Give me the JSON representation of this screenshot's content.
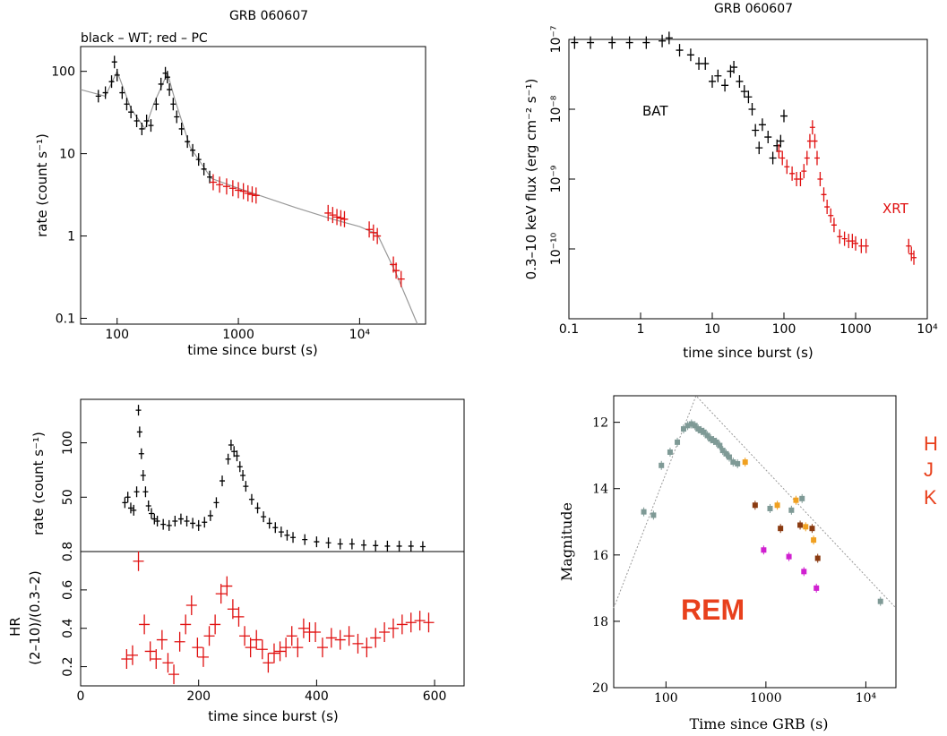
{
  "colors": {
    "axis": "#000000",
    "red": "#e01010",
    "model": "#999999",
    "grey": "#7f9a96",
    "orange": "#f0a020",
    "brown": "#8a3a10",
    "magenta": "#d020d0",
    "label_red": "#e8401c"
  },
  "chart_data": [
    {
      "id": "xrt_lightcurve",
      "type": "scatter",
      "title": "GRB 060607",
      "subtitle": "black – WT; red – PC",
      "xlabel": "time since burst (s)",
      "ylabel": "rate (count s⁻¹)",
      "xscale": "log",
      "yscale": "log",
      "xlim": [
        50,
        35000
      ],
      "ylim": [
        0.085,
        200
      ],
      "xticks": [
        100,
        1000,
        10000
      ],
      "xtick_labels": [
        "100",
        "1000",
        "10⁴"
      ],
      "yticks": [
        0.1,
        1,
        10,
        100
      ],
      "ytick_labels": [
        "0.1",
        "1",
        "10",
        "100"
      ],
      "grid": false,
      "series": [
        {
          "name": "WT",
          "color": "#000000",
          "x": [
            70,
            80,
            90,
            95,
            100,
            110,
            120,
            130,
            145,
            160,
            175,
            190,
            210,
            230,
            250,
            260,
            270,
            290,
            310,
            340,
            380,
            420,
            470,
            520,
            580
          ],
          "y": [
            50,
            55,
            75,
            130,
            90,
            55,
            40,
            32,
            25,
            20,
            25,
            22,
            40,
            70,
            95,
            85,
            60,
            40,
            28,
            20,
            14,
            11,
            8.5,
            6.5,
            5.2
          ]
        },
        {
          "name": "PC",
          "color": "#e01010",
          "x": [
            620,
            700,
            800,
            900,
            1000,
            1100,
            1200,
            1300,
            1400,
            5500,
            6000,
            6500,
            7000,
            7500,
            12000,
            13000,
            14000,
            19000,
            20000,
            22000
          ],
          "y": [
            4.5,
            4.2,
            4.0,
            3.8,
            3.6,
            3.5,
            3.3,
            3.2,
            3.1,
            1.9,
            1.8,
            1.7,
            1.65,
            1.6,
            1.2,
            1.1,
            1.0,
            0.45,
            0.38,
            0.3
          ]
        },
        {
          "name": "model",
          "color": "#999999",
          "x": [
            50,
            80,
            100,
            130,
            170,
            200,
            260,
            300,
            400,
            600,
            1000,
            3000,
            6000,
            10000,
            14000,
            20000,
            30000
          ],
          "y": [
            60,
            50,
            100,
            35,
            20,
            40,
            95,
            45,
            12,
            5,
            3.8,
            2.2,
            1.6,
            1.3,
            1.05,
            0.35,
            0.085
          ]
        }
      ]
    },
    {
      "id": "bat_xrt_flux",
      "type": "scatter",
      "title": "GRB 060607",
      "xlabel": "time since burst (s)",
      "ylabel": "0.3–10 keV flux (erg cm⁻² s⁻¹)",
      "xscale": "log",
      "yscale": "log",
      "xlim": [
        0.1,
        10000
      ],
      "ylim": [
        1e-11,
        1e-07
      ],
      "xticks": [
        0.1,
        1,
        10,
        100,
        1000,
        10000
      ],
      "xtick_labels": [
        "0.1",
        "1",
        "10",
        "100",
        "1000",
        "10⁴"
      ],
      "yticks": [
        1e-07,
        1e-08,
        1e-09,
        1e-10
      ],
      "ytick_labels": [
        "10⁻⁷",
        "10⁻⁸",
        "10⁻⁹",
        "10⁻¹⁰"
      ],
      "grid": false,
      "annotations": [
        {
          "text": "BAT",
          "color": "#000000"
        },
        {
          "text": "XRT",
          "color": "#e01010"
        }
      ],
      "series": [
        {
          "name": "BAT",
          "color": "#000000",
          "x": [
            0.12,
            0.2,
            0.4,
            0.7,
            1.2,
            2.0,
            2.5,
            3.5,
            5,
            6.5,
            8,
            10,
            12,
            15,
            18,
            20,
            24,
            28,
            32,
            36,
            40,
            45,
            50,
            60,
            70,
            80,
            90,
            100
          ],
          "y": [
            9e-08,
            9e-08,
            9e-08,
            9e-08,
            9e-08,
            9.5e-08,
            1.05e-07,
            7e-08,
            6e-08,
            4.5e-08,
            4.5e-08,
            2.5e-08,
            3e-08,
            2.2e-08,
            3.5e-08,
            4e-08,
            2.5e-08,
            1.8e-08,
            1.5e-08,
            1e-08,
            5e-09,
            2.8e-09,
            6e-09,
            4e-09,
            2e-09,
            3e-09,
            3.5e-09,
            8e-09
          ]
        },
        {
          "name": "XRT",
          "color": "#e01010",
          "x": [
            85,
            95,
            110,
            130,
            150,
            170,
            190,
            210,
            230,
            250,
            270,
            290,
            320,
            360,
            400,
            450,
            500,
            600,
            700,
            800,
            900,
            1000,
            1200,
            1400,
            5500,
            6000,
            6500
          ],
          "y": [
            2.5e-09,
            2e-09,
            1.5e-09,
            1.2e-09,
            1e-09,
            1e-09,
            1.3e-09,
            2e-09,
            3.5e-09,
            5.5e-09,
            3.5e-09,
            2e-09,
            1e-09,
            6e-10,
            4e-10,
            3e-10,
            2.2e-10,
            1.5e-10,
            1.4e-10,
            1.3e-10,
            1.3e-10,
            1.2e-10,
            1.1e-10,
            1.1e-10,
            1.1e-10,
            8.5e-11,
            7.5e-11
          ]
        }
      ]
    },
    {
      "id": "early_rate_hr",
      "type": "scatter",
      "xlabel": "time since burst (s)",
      "xlim": [
        0,
        650
      ],
      "xticks": [
        0,
        200,
        400,
        600
      ],
      "xtick_labels": [
        "0",
        "200",
        "400",
        "600"
      ],
      "grid": false,
      "panels": [
        {
          "name": "rate",
          "ylabel": "rate (count s⁻¹)",
          "ylim": [
            0,
            140
          ],
          "yticks": [
            50,
            100
          ],
          "ytick_labels": [
            "50",
            "100"
          ],
          "color": "#000000",
          "x": [
            75,
            80,
            85,
            90,
            95,
            98,
            100,
            103,
            106,
            110,
            115,
            120,
            125,
            130,
            140,
            150,
            160,
            170,
            180,
            190,
            200,
            210,
            220,
            230,
            240,
            250,
            255,
            260,
            265,
            270,
            275,
            280,
            290,
            300,
            310,
            320,
            330,
            340,
            350,
            360,
            380,
            400,
            420,
            440,
            460,
            480,
            500,
            520,
            540,
            560,
            580
          ],
          "y": [
            45,
            50,
            40,
            38,
            55,
            130,
            110,
            90,
            70,
            55,
            42,
            35,
            30,
            28,
            25,
            24,
            28,
            30,
            28,
            26,
            24,
            27,
            33,
            45,
            65,
            85,
            98,
            92,
            88,
            78,
            70,
            60,
            48,
            40,
            32,
            26,
            22,
            18,
            15,
            13,
            11,
            9,
            8,
            7,
            7,
            6,
            5.5,
            5,
            5,
            5,
            4.5
          ]
        },
        {
          "name": "HR",
          "ylabel": "HR\n(2–10)/(0.3–2)",
          "ylim": [
            0.1,
            0.8
          ],
          "yticks": [
            0.2,
            0.4,
            0.6,
            0.8
          ],
          "ytick_labels": [
            "0.2",
            "0.4",
            "0.6",
            "0.8"
          ],
          "color": "#e01010",
          "x": [
            78,
            88,
            98,
            108,
            118,
            128,
            138,
            148,
            158,
            168,
            178,
            188,
            198,
            208,
            218,
            228,
            238,
            248,
            258,
            268,
            278,
            288,
            298,
            308,
            318,
            328,
            338,
            348,
            358,
            368,
            378,
            388,
            398,
            410,
            425,
            440,
            455,
            470,
            485,
            500,
            515,
            530,
            545,
            560,
            575,
            590
          ],
          "y": [
            0.24,
            0.26,
            0.75,
            0.42,
            0.28,
            0.24,
            0.34,
            0.22,
            0.16,
            0.33,
            0.42,
            0.52,
            0.3,
            0.25,
            0.36,
            0.42,
            0.58,
            0.62,
            0.5,
            0.46,
            0.36,
            0.3,
            0.34,
            0.29,
            0.22,
            0.27,
            0.28,
            0.3,
            0.36,
            0.3,
            0.4,
            0.38,
            0.38,
            0.3,
            0.35,
            0.34,
            0.36,
            0.32,
            0.3,
            0.35,
            0.38,
            0.4,
            0.42,
            0.43,
            0.44,
            0.43
          ]
        }
      ]
    },
    {
      "id": "rem_nir",
      "type": "scatter",
      "xlabel": "Time since GRB (s)",
      "ylabel": "Magnitude",
      "xscale": "log",
      "xlim": [
        30,
        20000
      ],
      "ylim": [
        20,
        11.2
      ],
      "y_inverted": true,
      "xticks": [
        100,
        1000,
        10000
      ],
      "xtick_labels": [
        "100",
        "1000",
        "10⁴"
      ],
      "yticks": [
        12,
        14,
        16,
        18,
        20
      ],
      "ytick_labels": [
        "12",
        "14",
        "16",
        "18",
        "20"
      ],
      "grid": false,
      "label": "REM",
      "bands": [
        "H",
        "J",
        "K"
      ],
      "series": [
        {
          "color": "#7f9a96",
          "x": [
            60,
            75,
            90,
            110,
            130,
            150,
            165,
            180,
            195,
            210,
            225,
            240,
            260,
            280,
            300,
            320,
            345,
            370,
            400,
            430,
            470,
            520,
            1100,
            1800,
            2300,
            14000
          ],
          "y": [
            14.7,
            14.8,
            13.3,
            12.9,
            12.6,
            12.2,
            12.1,
            12.05,
            12.1,
            12.2,
            12.25,
            12.3,
            12.4,
            12.5,
            12.55,
            12.6,
            12.7,
            12.85,
            12.95,
            13.05,
            13.2,
            13.25,
            14.6,
            14.65,
            14.3,
            17.4
          ]
        },
        {
          "color": "#f0a020",
          "x": [
            620,
            1300,
            2000,
            2500,
            3000
          ],
          "y": [
            13.2,
            14.5,
            14.35,
            15.15,
            15.55
          ]
        },
        {
          "color": "#8a3a10",
          "x": [
            780,
            1400,
            2200,
            2900,
            3300
          ],
          "y": [
            14.5,
            15.2,
            15.1,
            15.2,
            16.1
          ]
        },
        {
          "color": "#d020d0",
          "x": [
            950,
            1700,
            2400,
            3200
          ],
          "y": [
            15.85,
            16.05,
            16.5,
            17.0
          ]
        },
        {
          "color": "#999999",
          "x": [
            30,
            200,
            20000
          ],
          "y": [
            17.6,
            11.2,
            17.6
          ]
        }
      ]
    }
  ]
}
